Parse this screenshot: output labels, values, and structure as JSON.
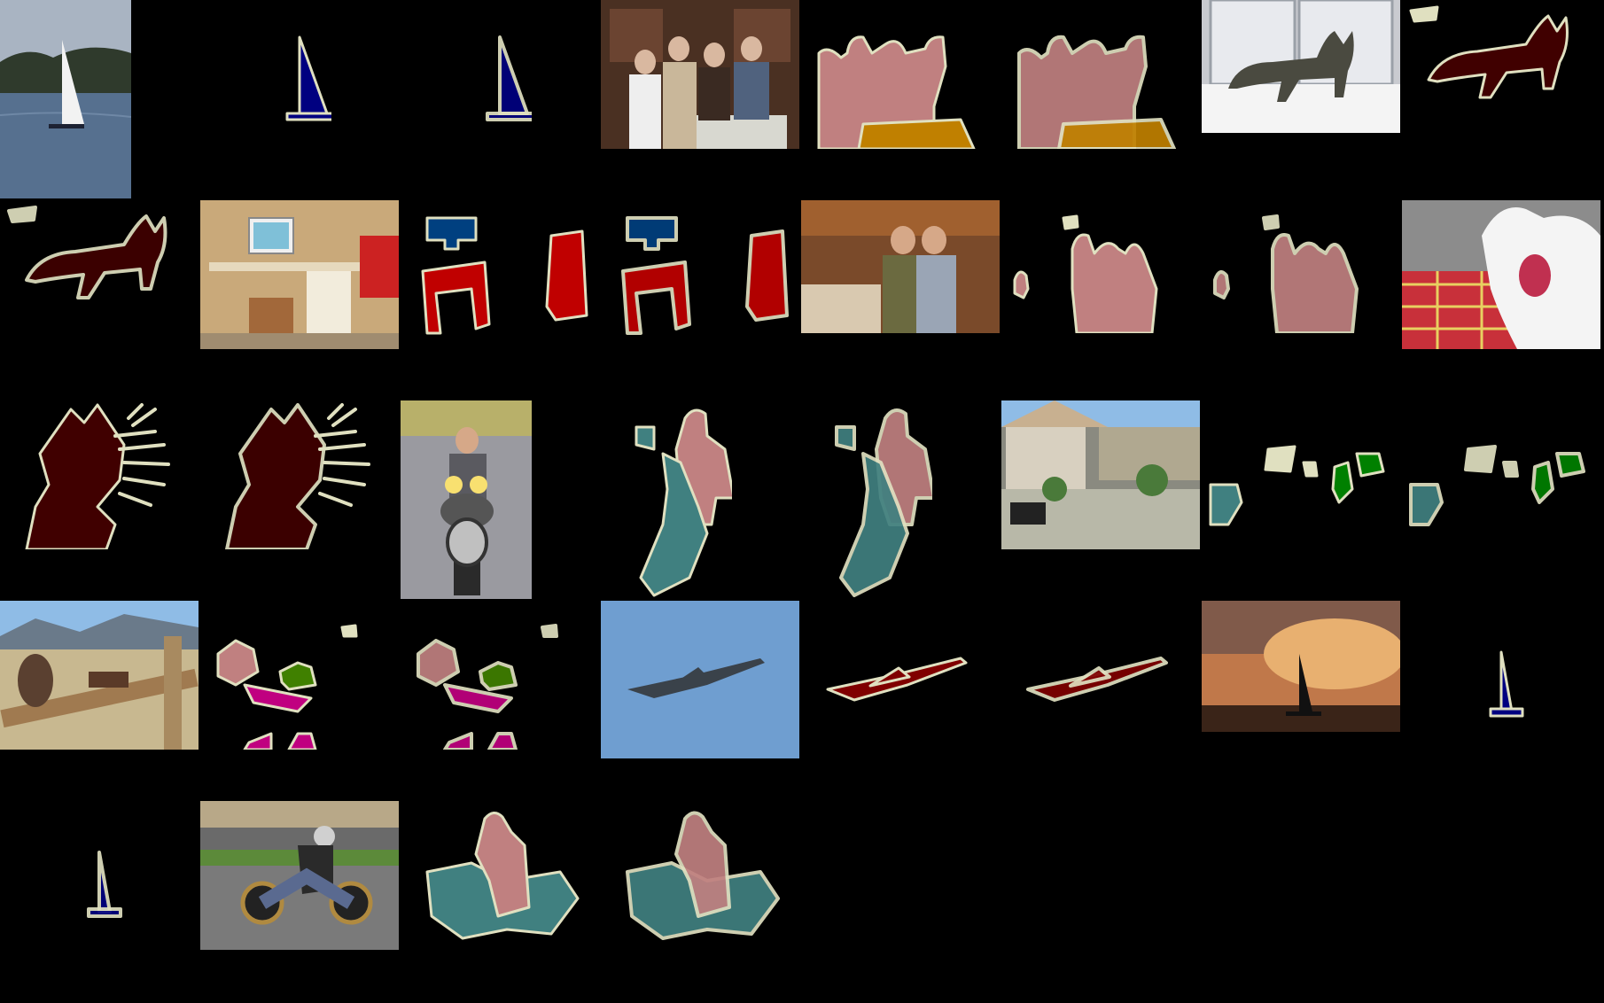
{
  "figure": {
    "background": "#000000",
    "columns": 8,
    "voc_palette": {
      "aeroplane": "#800000",
      "boat": "#000080",
      "chair": "#C00000",
      "tvmonitor": "#004080",
      "person": "#C08080",
      "cat": "#400000",
      "diningtable": "#C08000",
      "motorbike": "#408080",
      "pottedplant": "#008000",
      "cow": "#408000",
      "horse": "#C00080",
      "void_boundary": "#E0E0C0"
    },
    "cells": [
      {
        "kind": "photo",
        "scene": "sailboat"
      },
      {
        "kind": "gt",
        "scene": "sailboat"
      },
      {
        "kind": "pred",
        "scene": "sailboat"
      },
      {
        "kind": "photo",
        "scene": "family-kitchen"
      },
      {
        "kind": "gt",
        "scene": "family-kitchen"
      },
      {
        "kind": "pred",
        "scene": "family-kitchen"
      },
      {
        "kind": "photo",
        "scene": "cat-window"
      },
      {
        "kind": "gt",
        "scene": "cat-window"
      },
      {
        "kind": "pred",
        "scene": "cat-window"
      },
      {
        "kind": "photo",
        "scene": "desk"
      },
      {
        "kind": "gt",
        "scene": "desk"
      },
      {
        "kind": "pred",
        "scene": "desk"
      },
      {
        "kind": "photo",
        "scene": "two-men"
      },
      {
        "kind": "gt",
        "scene": "two-men"
      },
      {
        "kind": "pred",
        "scene": "two-men"
      },
      {
        "kind": "photo",
        "scene": "cat-yawn"
      },
      {
        "kind": "gt",
        "scene": "cat-yawn"
      },
      {
        "kind": "pred",
        "scene": "cat-yawn"
      },
      {
        "kind": "photo",
        "scene": "motorbike-rider"
      },
      {
        "kind": "gt",
        "scene": "motorbike-rider"
      },
      {
        "kind": "pred",
        "scene": "motorbike-rider"
      },
      {
        "kind": "photo",
        "scene": "house-plants"
      },
      {
        "kind": "gt",
        "scene": "house-plants"
      },
      {
        "kind": "pred",
        "scene": "house-plants"
      },
      {
        "kind": "photo",
        "scene": "farm"
      },
      {
        "kind": "gt",
        "scene": "farm"
      },
      {
        "kind": "pred",
        "scene": "farm"
      },
      {
        "kind": "photo",
        "scene": "jet"
      },
      {
        "kind": "gt",
        "scene": "jet"
      },
      {
        "kind": "pred",
        "scene": "jet"
      },
      {
        "kind": "photo",
        "scene": "sunset-boat"
      },
      {
        "kind": "gt",
        "scene": "sunset-boat"
      },
      {
        "kind": "pred",
        "scene": "sunset-boat"
      },
      {
        "kind": "photo",
        "scene": "motorcycle-track"
      },
      {
        "kind": "gt",
        "scene": "motorcycle-track"
      },
      {
        "kind": "pred",
        "scene": "motorcycle-track"
      }
    ]
  }
}
